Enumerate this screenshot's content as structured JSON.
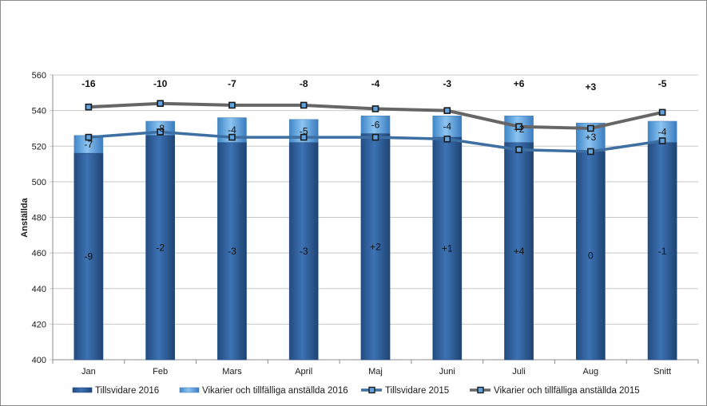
{
  "chart_data": {
    "type": "bar",
    "ylabel": "Anställda",
    "ylim": [
      400,
      560
    ],
    "yticks": [
      400,
      420,
      440,
      460,
      480,
      500,
      520,
      540,
      560
    ],
    "grid": true,
    "legend_position": "bottom",
    "categories": [
      "Jan",
      "Feb",
      "Mars",
      "April",
      "Maj",
      "Juni",
      "Juli",
      "Aug",
      "Snitt"
    ],
    "series": [
      {
        "name": "Tillsvidare 2016",
        "kind": "bar",
        "color": "#2f5f9e",
        "values": [
          516,
          526,
          522,
          522,
          527,
          525,
          522,
          517,
          522
        ],
        "labels": [
          "-9",
          "-2",
          "-3",
          "-3",
          "+2",
          "+1",
          "+4",
          "0",
          "-1"
        ]
      },
      {
        "name": "Vikarier och tillfälliga anställda 2016",
        "kind": "bar_stacked_total",
        "color": "#5fa3e0",
        "values": [
          526,
          534,
          536,
          535,
          537,
          537,
          537,
          533,
          534
        ],
        "labels": [
          "-7",
          "-8",
          "-4",
          "-5",
          "-6",
          "-4",
          "+2",
          "+3",
          "-4"
        ]
      },
      {
        "name": "Tillsvidare 2015",
        "kind": "line",
        "color": "#3e6fa3",
        "values": [
          525,
          528,
          525,
          525,
          525,
          524,
          518,
          517,
          523
        ]
      },
      {
        "name": "Vikarier och tillfälliga anställda 2015",
        "kind": "line",
        "color": "#666666",
        "values": [
          542,
          544,
          543,
          543,
          541,
          540,
          531,
          530,
          539
        ]
      }
    ],
    "total_diff_labels": [
      "-16",
      "-10",
      "-7",
      "-8",
      "-4",
      "-3",
      "+6",
      "+3",
      "-5"
    ]
  }
}
